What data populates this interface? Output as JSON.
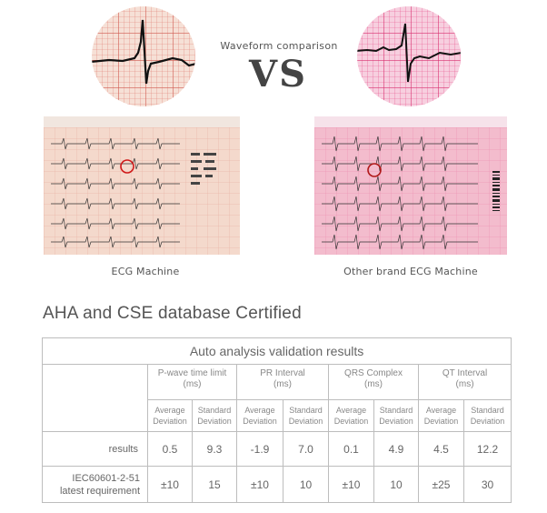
{
  "comparison": {
    "title": "Waveform comparison",
    "vs": "VS",
    "left_caption": "ECG Machine",
    "right_caption": "Other brand ECG Machine",
    "colors": {
      "left_grid": "#e07a70",
      "left_paper": "#f6e0d6",
      "right_grid": "#e8508a",
      "right_paper": "#f7cfdf",
      "highlight": "#d01818"
    }
  },
  "section_heading": "AHA and CSE database Certified",
  "table": {
    "title": "Auto analysis validation results",
    "groups": [
      {
        "label": "P-wave time limit",
        "unit": "(ms)"
      },
      {
        "label": "PR Interval",
        "unit": "(ms)"
      },
      {
        "label": "QRS Complex",
        "unit": "(ms)"
      },
      {
        "label": "QT Interval",
        "unit": "(ms)"
      }
    ],
    "sub_headers": [
      {
        "line1": "Average",
        "line2": "Deviation"
      },
      {
        "line1": "Standard",
        "line2": "Deviation"
      }
    ],
    "rows": [
      {
        "label": "results",
        "values": [
          "0.5",
          "9.3",
          "-1.9",
          "7.0",
          "0.1",
          "4.9",
          "4.5",
          "12.2"
        ]
      },
      {
        "label_line1": "IEC60601-2-51",
        "label_line2": "latest requirement",
        "values": [
          "±10",
          "15",
          "±10",
          "10",
          "±10",
          "10",
          "±25",
          "30"
        ]
      }
    ]
  }
}
